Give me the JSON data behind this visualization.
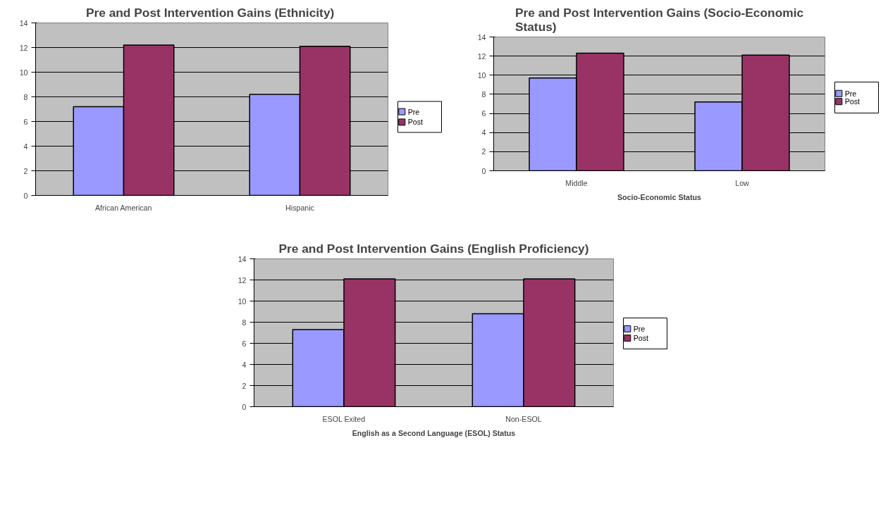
{
  "chart_data": [
    {
      "type": "bar",
      "title": "Pre and Post  Intervention Gains (Ethnicity)",
      "categories": [
        "African American",
        "Hispanic"
      ],
      "series": [
        {
          "name": "Pre",
          "color": "#9999ff",
          "values": [
            7.2,
            8.2
          ]
        },
        {
          "name": "Post",
          "color": "#993366",
          "values": [
            12.2,
            12.1
          ]
        }
      ],
      "ylim": [
        0,
        14
      ],
      "yticks": [
        0,
        2,
        4,
        6,
        8,
        10,
        12,
        14
      ],
      "grid": "y",
      "legend": "right"
    },
    {
      "type": "bar",
      "title": "Pre and Post Intervention Gains (Socio-Economic Status)",
      "xlabel": "Socio-Economic Status",
      "categories": [
        "Middle",
        "Low"
      ],
      "series": [
        {
          "name": "Pre",
          "color": "#9999ff",
          "values": [
            9.7,
            7.2
          ]
        },
        {
          "name": "Post",
          "color": "#993366",
          "values": [
            12.3,
            12.1
          ]
        }
      ],
      "ylim": [
        0,
        14
      ],
      "yticks": [
        0,
        2,
        4,
        6,
        8,
        10,
        12,
        14
      ],
      "grid": "y",
      "legend": "right"
    },
    {
      "type": "bar",
      "title": "Pre and Post Intervention Gains (English Proficiency)",
      "xlabel": "English as a Second Language (ESOL) Status",
      "categories": [
        "ESOL Exited",
        "Non-ESOL"
      ],
      "series": [
        {
          "name": "Pre",
          "color": "#9999ff",
          "values": [
            7.3,
            8.8
          ]
        },
        {
          "name": "Post",
          "color": "#993366",
          "values": [
            12.1,
            12.1
          ]
        }
      ],
      "ylim": [
        0,
        14
      ],
      "yticks": [
        0,
        2,
        4,
        6,
        8,
        10,
        12,
        14
      ],
      "grid": "y",
      "legend": "right"
    }
  ]
}
